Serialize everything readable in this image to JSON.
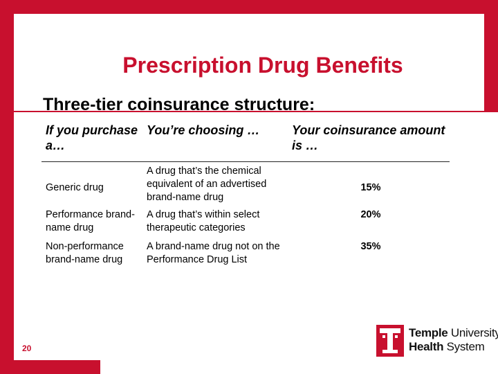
{
  "slide": {
    "title": "Prescription Drug Benefits",
    "subtitle": "Three-tier coinsurance structure:",
    "page_number": "20"
  },
  "table": {
    "headers": [
      "If you purchase a…",
      "You’re choosing …",
      "Your coinsurance amount is …"
    ],
    "rows": [
      {
        "type": "Generic drug",
        "description": "A drug that’s the chemical equivalent of an advertised brand-name drug",
        "coinsurance": "15%"
      },
      {
        "type": "Performance brand-name drug",
        "description": "A drug that’s within select therapeutic categories",
        "coinsurance": "20%"
      },
      {
        "type": "Non-performance brand-name drug",
        "description": "A brand-name drug not on the Performance Drug List",
        "coinsurance": "35%"
      }
    ]
  },
  "logo": {
    "line1_bold": "Temple",
    "line1_rest": " University",
    "line2_bold": "Health",
    "line2_rest": " System"
  },
  "colors": {
    "brand_red": "#c8102e",
    "header_bg": "#ffffff",
    "cell_bg": "#ffffff"
  }
}
